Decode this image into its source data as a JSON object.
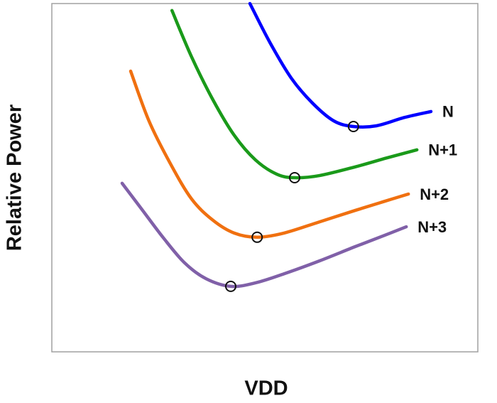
{
  "chart_data": {
    "type": "line",
    "xlabel": "VDD",
    "ylabel": "Relative Power",
    "xlim": [
      0,
      100
    ],
    "ylim": [
      0,
      100
    ],
    "series": [
      {
        "name": "N",
        "color": "#0000ff",
        "x": [
          46.5,
          51.2,
          56.2,
          61.2,
          66.2,
          70.8,
          76.2,
          82.8,
          89
        ],
        "values": [
          100,
          88.8,
          78.6,
          71.4,
          66.3,
          64.7,
          64.9,
          67.3,
          69
        ],
        "optimum": {
          "x": 70.8,
          "y": 64.7
        }
      },
      {
        "name": "N+1",
        "color": "#1a9a1a",
        "x": [
          28.2,
          32.8,
          37.8,
          42.8,
          47.8,
          52.8,
          57,
          62.8,
          71.2,
          78.7,
          85.7
        ],
        "values": [
          98,
          84.7,
          72.4,
          62.2,
          55.1,
          51,
          50,
          50.6,
          53.1,
          55.7,
          58
        ],
        "optimum": {
          "x": 57,
          "y": 50
        }
      },
      {
        "name": "N+2",
        "color": "#f07010",
        "x": [
          18.5,
          22.8,
          27.8,
          32.8,
          37.8,
          42.8,
          48.2,
          54.5,
          62.8,
          71.2,
          77.8,
          83.7
        ],
        "values": [
          80.6,
          66.3,
          54.1,
          43.9,
          37.8,
          34.1,
          32.9,
          34.1,
          37.3,
          40.6,
          43.1,
          45.3
        ],
        "optimum": {
          "x": 48.2,
          "y": 32.9
        }
      },
      {
        "name": "N+3",
        "color": "#8060a8",
        "x": [
          16.5,
          21.2,
          26.2,
          31.2,
          36.2,
          42,
          47.8,
          54.5,
          62.8,
          71.2,
          77.8,
          83.2
        ],
        "values": [
          48.4,
          40.8,
          32.7,
          25.5,
          21,
          18.8,
          19.8,
          22.4,
          26.1,
          30.2,
          33.3,
          35.9
        ],
        "optimum": {
          "x": 42,
          "y": 18.8
        }
      }
    ]
  }
}
